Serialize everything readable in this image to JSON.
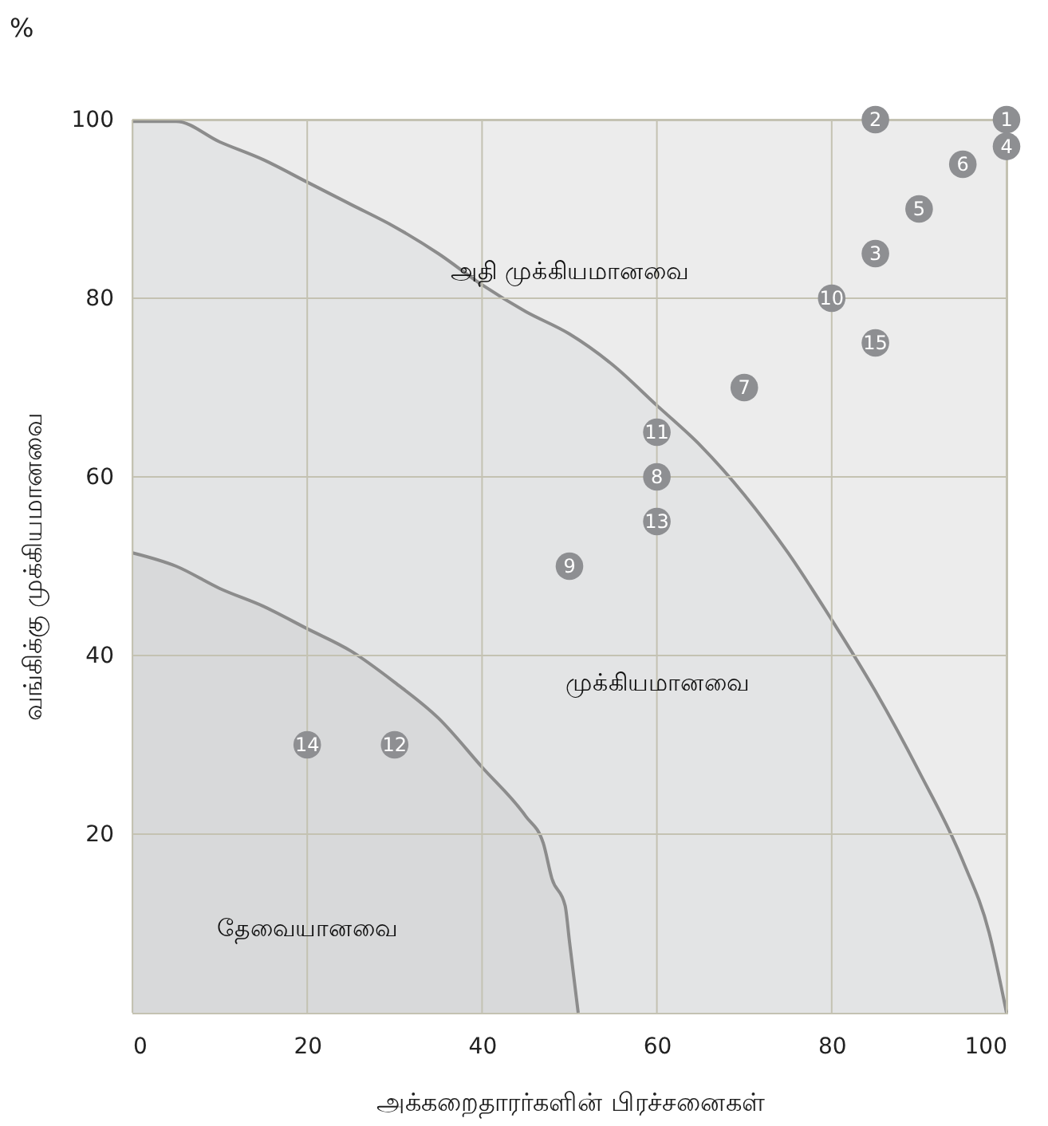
{
  "chart_data": {
    "type": "scatter",
    "xlabel": "அக்கறைதாரர்களின் பிரச்சனைகள்",
    "ylabel": "வங்கிக்கு முக்கியமானவை",
    "xlim": [
      0,
      100
    ],
    "ylim": [
      0,
      100
    ],
    "xticks": [
      0,
      20,
      40,
      60,
      80,
      100
    ],
    "yticks": [
      20,
      40,
      60,
      80,
      100
    ],
    "grid": true,
    "annotations": [
      "%",
      "அதி முக்கியமானவை",
      {
        "text": "1",
        "x": 100,
        "y": 100
      },
      {
        "text": "2",
        "x": 85,
        "y": 100
      },
      {
        "text": "3",
        "x": 85,
        "y": 85
      },
      {
        "text": "4",
        "x": 100,
        "y": 97
      },
      {
        "text": "5",
        "x": 90,
        "y": 90
      },
      {
        "text": "6",
        "x": 95,
        "y": 95
      },
      {
        "text": "7",
        "x": 70,
        "y": 70
      },
      {
        "text": "8",
        "x": 60,
        "y": 60
      },
      {
        "text": "9",
        "x": 50,
        "y": 50
      },
      {
        "text": "10",
        "x": 80,
        "y": 80
      },
      {
        "text": "11",
        "x": 60,
        "y": 65
      },
      {
        "text": "12",
        "x": 30,
        "y": 30
      },
      {
        "text": "13",
        "x": 60,
        "y": 55
      },
      {
        "text": "14",
        "x": 20,
        "y": 30
      },
      {
        "text": "15",
        "x": 85,
        "y": 75
      }
    ],
    "series": [
      {
        "type": "area",
        "name": "முக்கியமானவை",
        "color": "#e0e1e3",
        "x": [
          0,
          5,
          10,
          15,
          20,
          25,
          30,
          35,
          40,
          45,
          50,
          55,
          60,
          65,
          70,
          75,
          80,
          85,
          90,
          95,
          98,
          100
        ],
        "values": [
          99.8,
          99.8,
          97.5,
          95.5,
          93,
          90.5,
          88,
          85,
          81.5,
          78.5,
          76,
          72.5,
          68,
          63.5,
          58,
          51.5,
          44,
          36,
          27,
          17,
          9,
          0
        ]
      },
      {
        "type": "area",
        "name": "தேவையானவை",
        "color": "#d3d4d6",
        "x": [
          0,
          5,
          10,
          15,
          20,
          25,
          30,
          35,
          40,
          45,
          47,
          48,
          49.5,
          50,
          51
        ],
        "values": [
          51.5,
          50,
          47.5,
          45.5,
          43,
          40.5,
          37,
          33,
          27.5,
          22,
          19,
          15,
          12,
          8,
          0
        ]
      },
      {
        "color": "#8e8f92",
        "marker": "circle",
        "x": [
          100,
          85,
          85,
          100,
          90,
          95,
          70,
          60,
          50,
          80,
          60,
          30,
          60,
          20,
          85
        ],
        "values": [
          100,
          100,
          85,
          97,
          90,
          95,
          70,
          60,
          50,
          80,
          65,
          30,
          55,
          30,
          75
        ]
      }
    ]
  }
}
